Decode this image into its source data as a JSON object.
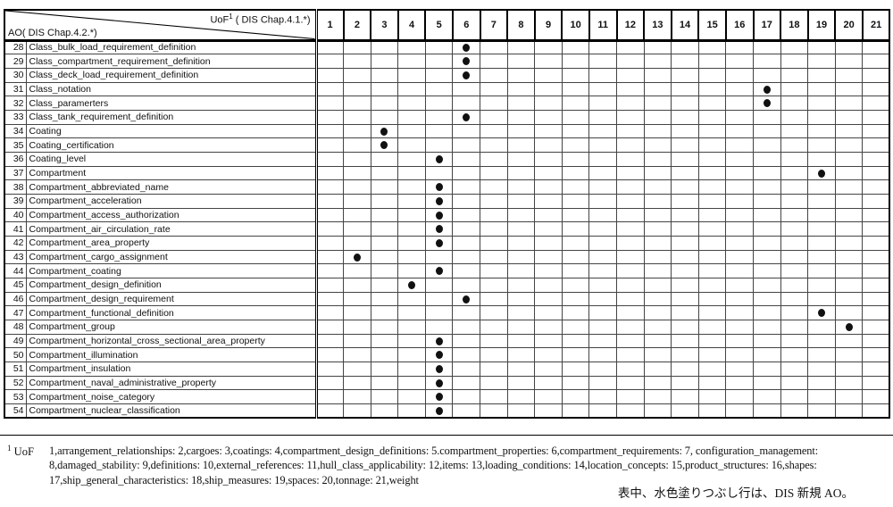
{
  "table": {
    "corner": {
      "uof_label": "UoF",
      "uof_sup": "1",
      "uof_suffix": " ( DIS Chap.4.1.*)",
      "ao_label": "AO( DIS Chap.4.2.*)"
    },
    "columns": [
      "1",
      "2",
      "3",
      "4",
      "5",
      "6",
      "7",
      "8",
      "9",
      "10",
      "11",
      "12",
      "13",
      "14",
      "15",
      "16",
      "17",
      "18",
      "19",
      "20",
      "21"
    ],
    "rows": [
      {
        "no": "28",
        "label": "Class_bulk_load_requirement_definition",
        "uof": 6
      },
      {
        "no": "29",
        "label": "Class_compartment_requirement_definition",
        "uof": 6
      },
      {
        "no": "30",
        "label": "Class_deck_load_requirement_definition",
        "uof": 6
      },
      {
        "no": "31",
        "label": "Class_notation",
        "uof": 17
      },
      {
        "no": "32",
        "label": "Class_paramerters",
        "uof": 17
      },
      {
        "no": "33",
        "label": "Class_tank_requirement_definition",
        "uof": 6
      },
      {
        "no": "34",
        "label": "Coating",
        "uof": 3
      },
      {
        "no": "35",
        "label": "Coating_certification",
        "uof": 3
      },
      {
        "no": "36",
        "label": "Coating_level",
        "uof": 5
      },
      {
        "no": "37",
        "label": "Compartment",
        "uof": 19
      },
      {
        "no": "38",
        "label": "Compartment_abbreviated_name",
        "uof": 5
      },
      {
        "no": "39",
        "label": "Compartment_acceleration",
        "uof": 5
      },
      {
        "no": "40",
        "label": "Compartment_access_authorization",
        "uof": 5
      },
      {
        "no": "41",
        "label": "Compartment_air_circulation_rate",
        "uof": 5
      },
      {
        "no": "42",
        "label": "Compartment_area_property",
        "uof": 5
      },
      {
        "no": "43",
        "label": "Compartment_cargo_assignment",
        "uof": 2
      },
      {
        "no": "44",
        "label": "Compartment_coating",
        "uof": 5
      },
      {
        "no": "45",
        "label": "Compartment_design_definition",
        "uof": 4
      },
      {
        "no": "46",
        "label": "Compartment_design_requirement",
        "uof": 6
      },
      {
        "no": "47",
        "label": "Compartment_functional_definition",
        "uof": 19
      },
      {
        "no": "48",
        "label": "Compartment_group",
        "uof": 20
      },
      {
        "no": "49",
        "label": "Compartment_horizontal_cross_sectional_area_property",
        "uof": 5
      },
      {
        "no": "50",
        "label": "Compartment_illumination",
        "uof": 5
      },
      {
        "no": "51",
        "label": "Compartment_insulation",
        "uof": 5
      },
      {
        "no": "52",
        "label": "Compartment_naval_administrative_property",
        "uof": 5
      },
      {
        "no": "53",
        "label": "Compartment_noise_category",
        "uof": 5
      },
      {
        "no": "54",
        "label": "Compartment_nuclear_classification",
        "uof": 5
      }
    ]
  },
  "footnote": {
    "marker": "1",
    "term": "UoF",
    "lines": [
      "1,arrangement_relationships: 2,cargoes: 3,coatings: 4,compartment_design_definitions: 5.compartment_properties: 6,compartment_requirements: 7, configuration_management:",
      "8,damaged_stability: 9,definitions: 10,external_references: 11,hull_class_applicability: 12,items: 13,loading_conditions: 14,location_concepts: 15,product_structures: 16,shapes:",
      "17,ship_general_characteristics: 18,ship_measures: 19,spaces: 20,tonnage: 21,weight"
    ],
    "note_jp": "表中、水色塗りつぶし行は、DIS 新規 AO。"
  }
}
